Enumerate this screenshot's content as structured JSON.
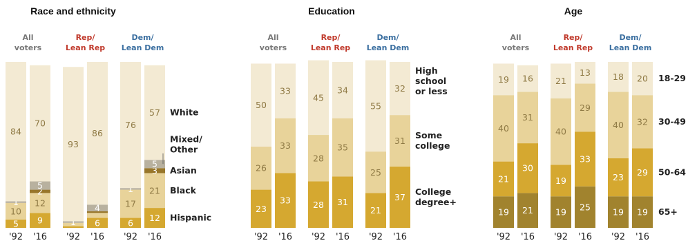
{
  "colors": {
    "all": "#777777",
    "rep": "#c0392b",
    "dem": "#3b6fa0",
    "light_text": "#999999",
    "dark_text": "#ffffff"
  },
  "chart_data": [
    {
      "type": "bar",
      "title": "Race and ethnicity",
      "stacked": true,
      "ylim": [
        0,
        100
      ],
      "groups": [
        {
          "label_lines": [
            "All",
            "voters"
          ],
          "color_key": "all"
        },
        {
          "label_lines": [
            "Rep/",
            "Lean Rep"
          ],
          "color_key": "rep"
        },
        {
          "label_lines": [
            "Dem/",
            "Lean Dem"
          ],
          "color_key": "dem"
        }
      ],
      "x": [
        "'92",
        "'16"
      ],
      "categories": [
        "Hispanic",
        "Black",
        "Asian",
        "Mixed/Other",
        "White"
      ],
      "category_labels": [
        [
          "Hispanic"
        ],
        [
          "Black"
        ],
        [
          "Asian"
        ],
        [
          "Mixed/",
          "Other"
        ],
        [
          "White"
        ]
      ],
      "category_colors": [
        "#d5a830",
        "#e8d39a",
        "#98762a",
        "#b8b19f",
        "#f3ead3"
      ],
      "category_text_colors": [
        "#ffffff",
        "#8f7a45",
        "#ffffff",
        "#ffffff",
        "#8f7a45"
      ],
      "values": [
        [
          [
            5,
            10,
            0,
            1,
            84
          ],
          [
            9,
            12,
            2,
            5,
            70
          ]
        ],
        [
          [
            1,
            2,
            0,
            1,
            93
          ],
          [
            6,
            3,
            1,
            4,
            86
          ]
        ],
        [
          [
            6,
            17,
            0,
            1,
            76
          ],
          [
            12,
            21,
            3,
            5,
            57
          ]
        ]
      ],
      "value_labels": [
        [
          [
            "5",
            "10",
            "",
            "1",
            "84"
          ],
          [
            "9",
            "12",
            "2",
            "5",
            "70"
          ]
        ],
        [
          [
            "",
            "",
            "",
            "1",
            "93"
          ],
          [
            "6",
            "",
            "",
            "4",
            "86"
          ]
        ],
        [
          [
            "6",
            "17",
            "",
            "1",
            "76"
          ],
          [
            "12",
            "21",
            "3",
            "5",
            "57"
          ]
        ]
      ]
    },
    {
      "type": "bar",
      "title": "Education",
      "stacked": true,
      "ylim": [
        0,
        100
      ],
      "groups": [
        {
          "label_lines": [
            "All",
            "voters"
          ],
          "color_key": "all"
        },
        {
          "label_lines": [
            "Rep/",
            "Lean Rep"
          ],
          "color_key": "rep"
        },
        {
          "label_lines": [
            "Dem/",
            "Lean Dem"
          ],
          "color_key": "dem"
        }
      ],
      "x": [
        "'92",
        "'16"
      ],
      "categories": [
        "College degree+",
        "Some college",
        "High school or less"
      ],
      "category_labels": [
        [
          "College",
          "degree+"
        ],
        [
          "Some",
          "college"
        ],
        [
          "High",
          "school",
          "or less"
        ]
      ],
      "category_colors": [
        "#d5a830",
        "#e8d39a",
        "#f3ead3"
      ],
      "category_text_colors": [
        "#ffffff",
        "#8f7a45",
        "#8f7a45"
      ],
      "values": [
        [
          [
            23,
            26,
            50
          ],
          [
            33,
            33,
            33
          ]
        ],
        [
          [
            28,
            28,
            45
          ],
          [
            31,
            35,
            34
          ]
        ],
        [
          [
            21,
            25,
            55
          ],
          [
            37,
            31,
            32
          ]
        ]
      ],
      "value_labels": [
        [
          [
            "23",
            "26",
            "50"
          ],
          [
            "33",
            "33",
            "33"
          ]
        ],
        [
          [
            "28",
            "28",
            "45"
          ],
          [
            "31",
            "35",
            "34"
          ]
        ],
        [
          [
            "21",
            "25",
            "55"
          ],
          [
            "37",
            "31",
            "32"
          ]
        ]
      ]
    },
    {
      "type": "bar",
      "title": "Age",
      "stacked": true,
      "ylim": [
        0,
        100
      ],
      "groups": [
        {
          "label_lines": [
            "All",
            "voters"
          ],
          "color_key": "all"
        },
        {
          "label_lines": [
            "Rep/",
            "Lean Rep"
          ],
          "color_key": "rep"
        },
        {
          "label_lines": [
            "Dem/",
            "Lean Dem"
          ],
          "color_key": "dem"
        }
      ],
      "x": [
        "'92",
        "'16"
      ],
      "categories": [
        "65+",
        "50-64",
        "30-49",
        "18-29"
      ],
      "category_labels": [
        [
          "65+"
        ],
        [
          "50-64"
        ],
        [
          "30-49"
        ],
        [
          "18-29"
        ]
      ],
      "category_colors": [
        "#a1832e",
        "#d5a830",
        "#e8d39a",
        "#f3ead3"
      ],
      "category_text_colors": [
        "#ffffff",
        "#ffffff",
        "#8f7a45",
        "#8f7a45"
      ],
      "values": [
        [
          [
            19,
            21,
            40,
            19
          ],
          [
            21,
            30,
            31,
            16
          ]
        ],
        [
          [
            19,
            19,
            40,
            21
          ],
          [
            25,
            33,
            29,
            13
          ]
        ],
        [
          [
            19,
            23,
            40,
            18
          ],
          [
            19,
            29,
            32,
            20
          ]
        ]
      ],
      "value_labels": [
        [
          [
            "19",
            "21",
            "40",
            "19"
          ],
          [
            "21",
            "30",
            "31",
            "16"
          ]
        ],
        [
          [
            "19",
            "19",
            "40",
            "21"
          ],
          [
            "25",
            "33",
            "29",
            "13"
          ]
        ],
        [
          [
            "19",
            "23",
            "40",
            "18"
          ],
          [
            "19",
            "29",
            "32",
            "20"
          ]
        ]
      ]
    }
  ]
}
